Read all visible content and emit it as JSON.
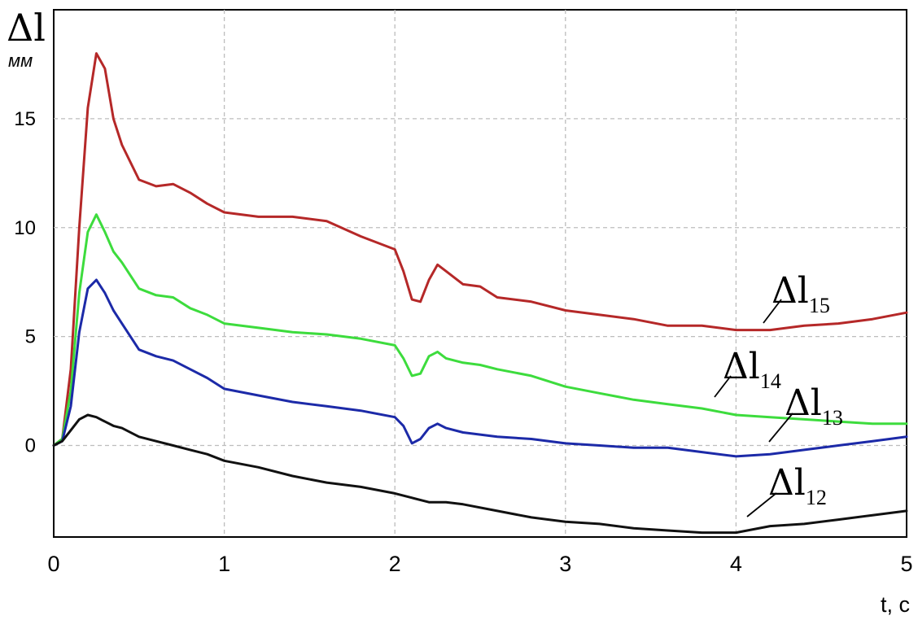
{
  "chart_data": {
    "type": "line",
    "ylabel": "Δl",
    "yunit": "мм",
    "xlabel": "t, c",
    "xlim": [
      0,
      5
    ],
    "ylim": [
      -4.2,
      20
    ],
    "xticks": [
      0,
      1,
      2,
      3,
      4,
      5
    ],
    "yticks": [
      0,
      5,
      10,
      15
    ],
    "grid": true,
    "series": [
      {
        "name": "Δl15",
        "base": "Δl",
        "sub": "15",
        "color": "#b52828",
        "x": [
          0,
          0.05,
          0.1,
          0.15,
          0.2,
          0.25,
          0.3,
          0.35,
          0.4,
          0.5,
          0.6,
          0.7,
          0.8,
          0.9,
          1.0,
          1.2,
          1.4,
          1.6,
          1.8,
          2.0,
          2.05,
          2.1,
          2.15,
          2.2,
          2.25,
          2.3,
          2.4,
          2.5,
          2.6,
          2.8,
          3.0,
          3.2,
          3.4,
          3.6,
          3.8,
          4.0,
          4.2,
          4.4,
          4.6,
          4.8,
          5.0
        ],
        "values": [
          0,
          0.3,
          3.5,
          10,
          15.5,
          18,
          17.3,
          15,
          13.8,
          12.2,
          11.9,
          12,
          11.6,
          11.1,
          10.7,
          10.5,
          10.5,
          10.3,
          9.6,
          9,
          8,
          6.7,
          6.6,
          7.6,
          8.3,
          8,
          7.4,
          7.3,
          6.8,
          6.6,
          6.2,
          6.0,
          5.8,
          5.5,
          5.5,
          5.3,
          5.3,
          5.5,
          5.6,
          5.8,
          6.1
        ]
      },
      {
        "name": "Δl14",
        "base": "Δl",
        "sub": "14",
        "color": "#3ddc3d",
        "x": [
          0,
          0.05,
          0.1,
          0.15,
          0.2,
          0.25,
          0.3,
          0.35,
          0.4,
          0.5,
          0.6,
          0.7,
          0.8,
          0.9,
          1.0,
          1.2,
          1.4,
          1.6,
          1.8,
          2.0,
          2.05,
          2.1,
          2.15,
          2.2,
          2.25,
          2.3,
          2.4,
          2.5,
          2.6,
          2.8,
          3.0,
          3.2,
          3.4,
          3.6,
          3.8,
          4.0,
          4.2,
          4.4,
          4.6,
          4.8,
          5.0
        ],
        "values": [
          0,
          0.3,
          2.5,
          7,
          9.8,
          10.6,
          9.8,
          8.9,
          8.4,
          7.2,
          6.9,
          6.8,
          6.3,
          6.0,
          5.6,
          5.4,
          5.2,
          5.1,
          4.9,
          4.6,
          4.0,
          3.2,
          3.3,
          4.1,
          4.3,
          4.0,
          3.8,
          3.7,
          3.5,
          3.2,
          2.7,
          2.4,
          2.1,
          1.9,
          1.7,
          1.4,
          1.3,
          1.2,
          1.1,
          1.0,
          1.0
        ]
      },
      {
        "name": "Δl13",
        "base": "Δl",
        "sub": "13",
        "color": "#1c2aa8",
        "x": [
          0,
          0.05,
          0.1,
          0.15,
          0.2,
          0.25,
          0.3,
          0.35,
          0.4,
          0.5,
          0.6,
          0.7,
          0.8,
          0.9,
          1.0,
          1.2,
          1.4,
          1.6,
          1.8,
          2.0,
          2.05,
          2.1,
          2.15,
          2.2,
          2.25,
          2.3,
          2.4,
          2.5,
          2.6,
          2.8,
          3.0,
          3.2,
          3.4,
          3.6,
          3.8,
          4.0,
          4.2,
          4.4,
          4.6,
          4.8,
          5.0
        ],
        "values": [
          0,
          0.2,
          1.8,
          5.2,
          7.2,
          7.6,
          7.0,
          6.2,
          5.6,
          4.4,
          4.1,
          3.9,
          3.5,
          3.1,
          2.6,
          2.3,
          2.0,
          1.8,
          1.6,
          1.3,
          0.9,
          0.1,
          0.3,
          0.8,
          1.0,
          0.8,
          0.6,
          0.5,
          0.4,
          0.3,
          0.1,
          0.0,
          -0.1,
          -0.1,
          -0.3,
          -0.5,
          -0.4,
          -0.2,
          0.0,
          0.2,
          0.4
        ]
      },
      {
        "name": "Δl12",
        "base": "Δl",
        "sub": "12",
        "color": "#111111",
        "x": [
          0,
          0.05,
          0.1,
          0.15,
          0.2,
          0.25,
          0.3,
          0.35,
          0.4,
          0.5,
          0.6,
          0.7,
          0.8,
          0.9,
          1.0,
          1.2,
          1.4,
          1.6,
          1.8,
          2.0,
          2.1,
          2.2,
          2.3,
          2.4,
          2.6,
          2.8,
          3.0,
          3.2,
          3.4,
          3.6,
          3.8,
          4.0,
          4.2,
          4.4,
          4.6,
          4.8,
          5.0
        ],
        "values": [
          0,
          0.2,
          0.7,
          1.2,
          1.4,
          1.3,
          1.1,
          0.9,
          0.8,
          0.4,
          0.2,
          0.0,
          -0.2,
          -0.4,
          -0.7,
          -1.0,
          -1.4,
          -1.7,
          -1.9,
          -2.2,
          -2.4,
          -2.6,
          -2.6,
          -2.7,
          -3.0,
          -3.3,
          -3.5,
          -3.6,
          -3.8,
          -3.9,
          -4.0,
          -4.0,
          -3.7,
          -3.6,
          -3.4,
          -3.2,
          -3.0
        ]
      }
    ]
  }
}
